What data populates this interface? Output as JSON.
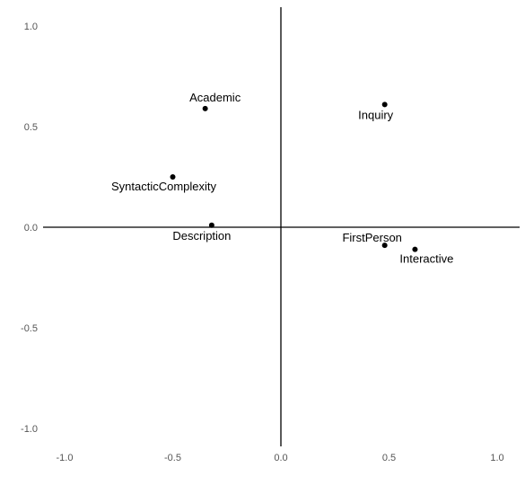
{
  "chart_data": {
    "type": "scatter",
    "title": "",
    "xlabel": "",
    "ylabel": "",
    "xlim": [
      -1.0,
      1.0
    ],
    "ylim": [
      -1.0,
      1.0
    ],
    "x_ticks": [
      "-1.0",
      "-0.5",
      "0.0",
      "0.5",
      "1.0"
    ],
    "y_ticks": [
      "1.0",
      "0.5",
      "0.0",
      "-0.5",
      "-1.0"
    ],
    "grid": false,
    "reference_lines": {
      "x": 0.0,
      "y": 0.0
    },
    "points": [
      {
        "label": "Academic",
        "x": -0.35,
        "y": 0.59
      },
      {
        "label": "Inquiry",
        "x": 0.48,
        "y": 0.61
      },
      {
        "label": "SyntacticComplexity",
        "x": -0.5,
        "y": 0.25
      },
      {
        "label": "Description",
        "x": -0.32,
        "y": 0.01
      },
      {
        "label": "FirstPerson",
        "x": 0.48,
        "y": -0.09
      },
      {
        "label": "Interactive",
        "x": 0.62,
        "y": -0.11
      }
    ],
    "colors": {
      "point": "#000000",
      "axis": "#000000",
      "tick_text": "#555555"
    }
  }
}
